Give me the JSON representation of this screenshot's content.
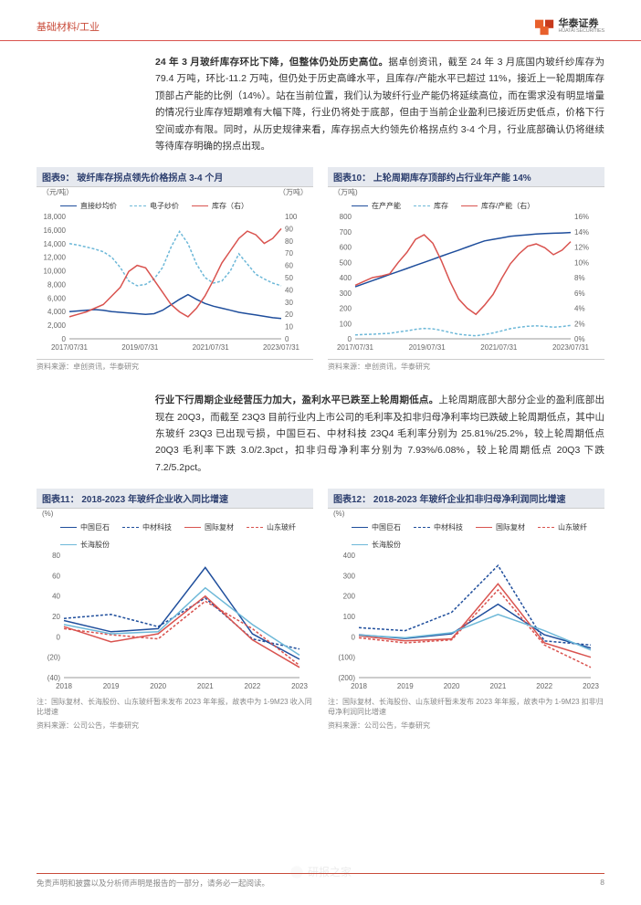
{
  "header": {
    "category": "基础材料/工业",
    "logo_cn": "华泰证券",
    "logo_en": "HUATAI SECURITIES",
    "logo_color1": "#e8602c",
    "logo_color2": "#c73a1d"
  },
  "para1": {
    "bold": "24 年 3 月玻纤库存环比下降，但整体仍处历史高位。",
    "rest": "据卓创资讯，截至 24 年 3 月底国内玻纤纱库存为 79.4 万吨，环比-11.2 万吨，但仍处于历史高峰水平，且库存/产能水平已超过 11%，接近上一轮周期库存顶部占产能的比例（14%）。站在当前位置，我们认为玻纤行业产能仍将延续高位，而在需求没有明显增量的情况行业库存短期难有大幅下降，行业仍将处于底部，但由于当前企业盈利已接近历史低点，价格下行空间或亦有限。同时，从历史规律来看，库存拐点大约领先价格拐点约 3-4 个月，行业底部确认仍将继续等待库存明确的拐点出现。"
  },
  "chart9": {
    "title": "图表9：  玻纤库存拐点领先价格拐点 3-4 个月",
    "unit_left": "（元/吨）",
    "unit_right": "（万吨）",
    "legend": [
      {
        "label": "直接纱均价",
        "color": "#1f4e9c",
        "dash": false
      },
      {
        "label": "电子纱价",
        "color": "#6db8d8",
        "dash": true
      },
      {
        "label": "库存（右）",
        "color": "#d9534f",
        "dash": false
      }
    ],
    "x_labels": [
      "2017/07/31",
      "2019/07/31",
      "2021/07/31",
      "2023/07/31"
    ],
    "y_left": {
      "min": 0,
      "max": 18000,
      "step": 2000
    },
    "y_right": {
      "min": 0,
      "max": 100,
      "step": 10
    },
    "series": {
      "direct": [
        4000,
        4100,
        4200,
        4300,
        4200,
        4000,
        3900,
        3800,
        3700,
        3600,
        3700,
        4200,
        5000,
        5800,
        6500,
        5800,
        5200,
        4800,
        4500,
        4200,
        3900,
        3700,
        3500,
        3300,
        3100,
        3000
      ],
      "eyarn": [
        14000,
        13800,
        13500,
        13200,
        12800,
        12000,
        10500,
        8500,
        7800,
        8000,
        8800,
        10500,
        13500,
        15800,
        14000,
        11000,
        9000,
        8200,
        8500,
        10000,
        12500,
        11000,
        9500,
        8800,
        8200,
        7800
      ],
      "inventory": [
        18,
        20,
        22,
        25,
        28,
        35,
        42,
        55,
        60,
        58,
        48,
        38,
        28,
        22,
        18,
        25,
        35,
        48,
        62,
        72,
        82,
        88,
        85,
        78,
        82,
        90
      ]
    },
    "source": "资料来源：卓创资讯，华泰研究"
  },
  "chart10": {
    "title": "图表10：  上轮周期库存顶部约占行业年产能 14%",
    "unit_left": "（万吨)",
    "unit_right": "",
    "legend": [
      {
        "label": "在产产能",
        "color": "#1f4e9c",
        "dash": false
      },
      {
        "label": "库存",
        "color": "#6db8d8",
        "dash": true
      },
      {
        "label": "库存/产能（右）",
        "color": "#d9534f",
        "dash": false
      }
    ],
    "x_labels": [
      "2017/07/31",
      "2019/07/31",
      "2021/07/31",
      "2023/07/31"
    ],
    "y_left": {
      "min": 0,
      "max": 800,
      "step": 100
    },
    "y_right_labels": [
      "0%",
      "2%",
      "4%",
      "6%",
      "8%",
      "10%",
      "12%",
      "14%",
      "16%"
    ],
    "series": {
      "capacity": [
        340,
        360,
        380,
        400,
        420,
        440,
        460,
        480,
        500,
        520,
        540,
        560,
        580,
        600,
        620,
        640,
        650,
        660,
        670,
        675,
        680,
        685,
        688,
        690,
        692,
        695
      ],
      "inventory": [
        25,
        28,
        30,
        33,
        36,
        45,
        52,
        62,
        68,
        65,
        55,
        42,
        30,
        24,
        20,
        28,
        38,
        52,
        66,
        75,
        82,
        85,
        82,
        76,
        80,
        88
      ],
      "ratio": [
        7,
        7.5,
        8,
        8.2,
        8.5,
        10,
        11.3,
        13,
        13.6,
        12.5,
        10.2,
        7.5,
        5.2,
        4,
        3.2,
        4.4,
        5.8,
        7.9,
        9.8,
        11.1,
        12.1,
        12.4,
        11.9,
        11,
        11.6,
        12.7
      ]
    },
    "source": "资料来源：卓创资讯，华泰研究"
  },
  "para2": {
    "bold": "行业下行周期企业经营压力加大，盈利水平已跌至上轮周期低点。",
    "rest": "上轮周期底部大部分企业的盈利底部出现在 20Q3，而截至 23Q3 目前行业内上市公司的毛利率及扣非归母净利率均已跌破上轮周期低点，其中山东玻纤 23Q3 已出现亏损，中国巨石、中材科技 23Q4 毛利率分别为 25.81%/25.2%，较上轮周期低点 20Q3 毛利率下跌 3.0/2.3pct，扣非归母净利率分别为 7.93%/6.08%，较上轮周期低点 20Q3 下跌 7.2/5.2pct。"
  },
  "chart11": {
    "title": "图表11：  2018-2023 年玻纤企业收入同比增速",
    "unit_left": "(%)",
    "legend": [
      {
        "label": "中国巨石",
        "color": "#1f4e9c",
        "dash": false
      },
      {
        "label": "中材科技",
        "color": "#1f4e9c",
        "dash": true
      },
      {
        "label": "国际复材",
        "color": "#d9534f",
        "dash": false
      },
      {
        "label": "山东玻纤",
        "color": "#d9534f",
        "dash": true
      },
      {
        "label": "长海股份",
        "color": "#6db8d8",
        "dash": false
      }
    ],
    "x_labels": [
      "2018",
      "2019",
      "2020",
      "2021",
      "2022",
      "2023"
    ],
    "y_left": {
      "min": -40,
      "max": 80,
      "step": 20,
      "labels": [
        "(40)",
        "(20)",
        "0",
        "20",
        "40",
        "60",
        "80"
      ]
    },
    "series": {
      "jushi": [
        16,
        5,
        8,
        68,
        3,
        -22
      ],
      "zhongcai": [
        18,
        22,
        10,
        38,
        -2,
        -12
      ],
      "guoji": [
        10,
        -5,
        3,
        40,
        -3,
        -30
      ],
      "shandong": [
        8,
        2,
        -2,
        35,
        8,
        -28
      ],
      "changhai": [
        12,
        3,
        5,
        48,
        12,
        -18
      ]
    },
    "note": "注：国际复材、长海股份、山东玻纤暂未发布 2023 年年报，故表中为 1-9M23 收入同比增速",
    "source": "资料来源：公司公告，华泰研究"
  },
  "chart12": {
    "title": "图表12：  2018-2023 年玻纤企业扣非归母净利润同比增速",
    "unit_left": "(%)",
    "legend": [
      {
        "label": "中国巨石",
        "color": "#1f4e9c",
        "dash": false
      },
      {
        "label": "中材科技",
        "color": "#1f4e9c",
        "dash": true
      },
      {
        "label": "国际复材",
        "color": "#d9534f",
        "dash": false
      },
      {
        "label": "山东玻纤",
        "color": "#d9534f",
        "dash": true
      },
      {
        "label": "长海股份",
        "color": "#6db8d8",
        "dash": false
      }
    ],
    "x_labels": [
      "2018",
      "2019",
      "2020",
      "2021",
      "2022",
      "2023"
    ],
    "y_left": {
      "min": -200,
      "max": 400,
      "step": 100,
      "labels": [
        "(200)",
        "(100)",
        "0",
        "100",
        "200",
        "300",
        "400"
      ]
    },
    "series": {
      "jushi": [
        10,
        -8,
        15,
        160,
        10,
        -55
      ],
      "zhongcai": [
        45,
        30,
        120,
        350,
        -20,
        -40
      ],
      "guoji": [
        5,
        -20,
        -10,
        260,
        -30,
        -100
      ],
      "shandong": [
        -5,
        -30,
        -15,
        230,
        -40,
        -150
      ],
      "changhai": [
        8,
        -5,
        20,
        110,
        30,
        -65
      ]
    },
    "note": "注：国际复材、长海股份、山东玻纤暂未发布 2023 年年报，故表中为 1-9M23 扣非归母净利润同比增速",
    "source": "资料来源：公司公告，华泰研究"
  },
  "footer": {
    "disclaimer": "免责声明和披露以及分析师声明是报告的一部分，请务必一起阅读。",
    "page": "8"
  },
  "watermark": "研报之家"
}
